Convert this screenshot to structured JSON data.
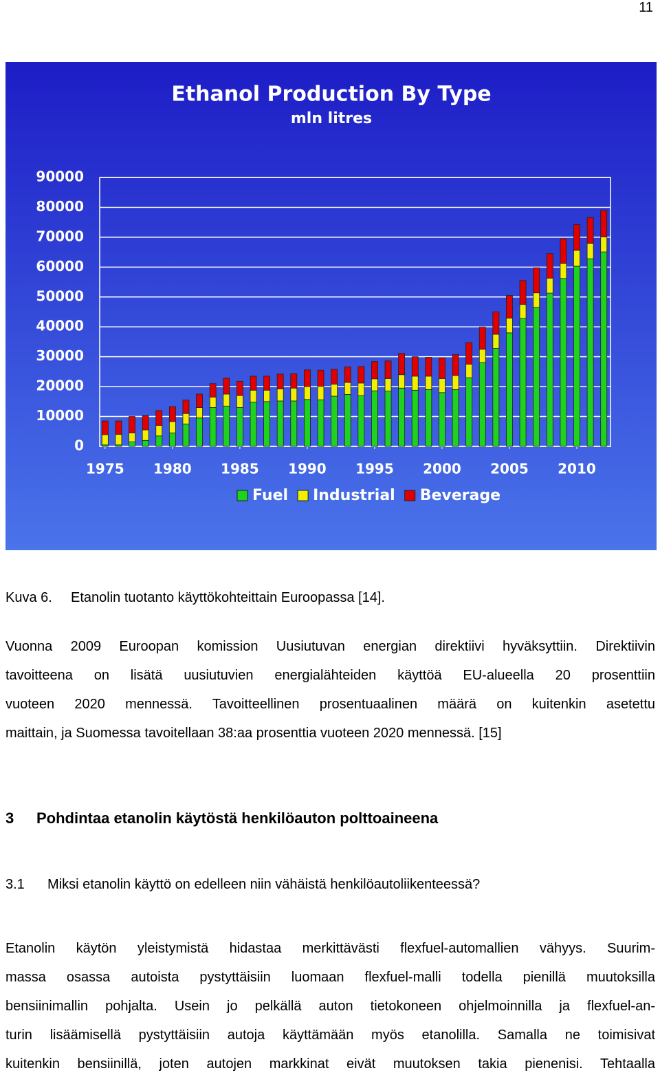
{
  "page_number": "11",
  "chart_data": {
    "type": "bar",
    "stacked": true,
    "title": "Ethanol Production By Type",
    "subtitle": "mln litres",
    "x": [
      1975,
      1976,
      1977,
      1978,
      1979,
      1980,
      1981,
      1982,
      1983,
      1984,
      1985,
      1986,
      1987,
      1988,
      1989,
      1990,
      1991,
      1992,
      1993,
      1994,
      1995,
      1996,
      1997,
      1998,
      1999,
      2000,
      2001,
      2002,
      2003,
      2004,
      2005,
      2006,
      2007,
      2008,
      2009,
      2010,
      2011,
      2012
    ],
    "xlim": [
      1974.6,
      2012.5
    ],
    "xticks": [
      1975,
      1980,
      1985,
      1990,
      1995,
      2000,
      2005,
      2010
    ],
    "ylim": [
      0,
      90000
    ],
    "yticks": [
      0,
      10000,
      20000,
      30000,
      40000,
      50000,
      60000,
      70000,
      80000,
      90000
    ],
    "grid": true,
    "legend": "bottom",
    "series": [
      {
        "name": "Fuel",
        "color": "#1ed21e",
        "values": [
          500,
          500,
          1500,
          2000,
          3500,
          4500,
          7500,
          9500,
          13000,
          13500,
          13000,
          14800,
          15000,
          15200,
          15200,
          15700,
          15600,
          16800,
          17400,
          17000,
          18600,
          18500,
          19500,
          18800,
          19000,
          18000,
          19000,
          23000,
          28000,
          32800,
          38000,
          42800,
          46500,
          51300,
          56200,
          60300,
          62800,
          65100
        ]
      },
      {
        "name": "Industrial",
        "color": "#f0f000",
        "values": [
          3400,
          3500,
          3000,
          3500,
          3500,
          3800,
          3500,
          3500,
          3500,
          4000,
          4000,
          4000,
          3800,
          4000,
          4300,
          4300,
          4500,
          4000,
          4000,
          4200,
          4000,
          4200,
          4500,
          4700,
          4500,
          4700,
          4700,
          4500,
          4500,
          4700,
          4900,
          4700,
          4900,
          5000,
          5000,
          5300,
          5100,
          5000
        ]
      },
      {
        "name": "Beverage",
        "color": "#e00000",
        "values": [
          4600,
          4500,
          5500,
          4800,
          5000,
          5000,
          4500,
          4500,
          4500,
          5300,
          4800,
          4700,
          4700,
          5000,
          4800,
          5600,
          5400,
          5000,
          5200,
          5500,
          5800,
          5900,
          7100,
          6500,
          6300,
          6900,
          7000,
          7200,
          7400,
          7500,
          7600,
          8000,
          8400,
          8200,
          8300,
          8600,
          8700,
          8900
        ]
      }
    ]
  },
  "caption": {
    "label": "Kuva 6.",
    "text": "Etanolin tuotanto käyttökohteittain Euroopassa [14]."
  },
  "paragraph_1": [
    "Vuonna 2009 Euroopan komission Uusiutuvan energian direktiivi hyväksyttiin. Direktiivin",
    "tavoitteena on lisätä uusiutuvien energialähteiden käyttöä EU-alueella 20 prosenttiin",
    "vuoteen 2020 mennessä. Tavoitteellinen prosentuaalinen määrä on kuitenkin asetettu",
    "maittain, ja Suomessa tavoitellaan 38:aa prosenttia vuoteen 2020 mennessä. [15]"
  ],
  "heading": {
    "number": "3",
    "text": "Pohdintaa etanolin käytöstä henkilöauton polttoaineena"
  },
  "subheading": {
    "number": "3.1",
    "text": "Miksi etanolin käyttö on edelleen niin vähäistä henkilöautoliikenteessä?"
  },
  "paragraph_2": [
    "Etanolin käytön yleistymistä hidastaa merkittävästi flexfuel-automallien vähyys. Suurim-",
    "massa osassa autoista pystyttäisiin luomaan flexfuel-malli todella pienillä muutoksilla",
    "bensiinimallin pohjalta. Usein jo pelkällä auton tietokoneen ohjelmoinnilla ja flexfuel-an-",
    "turin lisäämisellä pystyttäisiin autoja käyttämään myös etanolilla. Samalla ne toimisivat",
    "kuitenkin bensiinillä, joten autojen markkinat eivät muutoksen takia pienenisi. Tehtaalla"
  ]
}
